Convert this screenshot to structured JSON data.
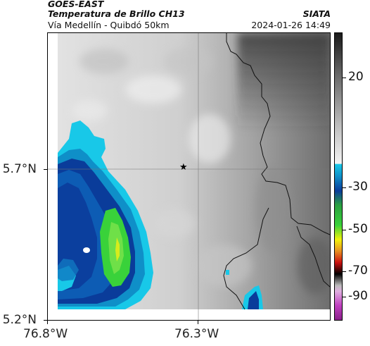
{
  "header": {
    "satellite": "GOES-EAST",
    "product": "Temperatura de Brillo CH13",
    "region": "Vía Medellín - Quibdó 50km",
    "institution": "SIATA",
    "datetime": "2024-01-26 14:49"
  },
  "axes": {
    "lat_labels": [
      "5.7°N",
      "5.2°N"
    ],
    "lon_labels": [
      "76.8°W",
      "76.3°W"
    ]
  },
  "colorbar": {
    "ticks": [
      "20",
      "-30",
      "-50",
      "-70",
      "-90"
    ],
    "colors": {
      "cold_white": "#f2f2f2",
      "gray_dark": "#262626",
      "cyan": "#18c8e8",
      "blue": "#0a3c9a",
      "green": "#39d23a",
      "yellow": "#f2f20a",
      "orange": "#e89020",
      "red": "#cc1010",
      "black": "#000000",
      "magenta": "#c040c0"
    }
  },
  "marker": {
    "symbol": "★"
  }
}
